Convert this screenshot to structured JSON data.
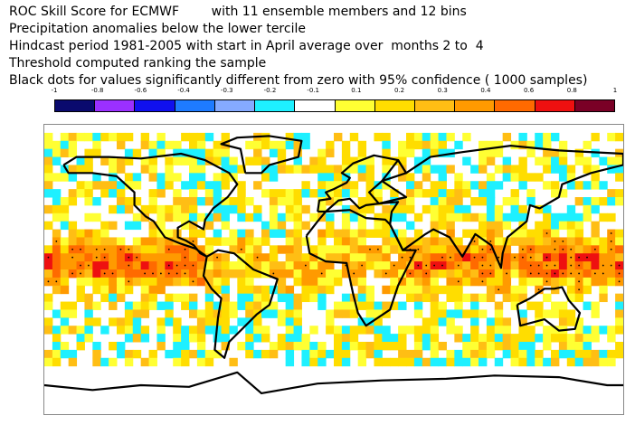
{
  "titles": [
    "ROC Skill Score for ECMWF        with 11 ensemble members and 12 bins",
    "Precipitation anomalies below the lower tercile",
    "Hindcast period 1981-2005 with start in April average over  months 2 to  4",
    "Threshold computed ranking the sample",
    "Black dots for values significantly different from zero with 95% confidence ( 1000 samples)"
  ],
  "legend": {
    "tick_labels": [
      "-1",
      "-0.8",
      "-0.6",
      "-0.4",
      "-0.3",
      "-0.2",
      "-0.1",
      "0.1",
      "0.2",
      "0.3",
      "0.4",
      "0.6",
      "0.8",
      "1"
    ],
    "colors": [
      "#0a0a6e",
      "#9b30ff",
      "#1010ee",
      "#1e7bff",
      "#85aaff",
      "#1ef0ff",
      "#ffffff",
      "#ffff33",
      "#ffdd00",
      "#ffbe14",
      "#ff9a00",
      "#ff6a00",
      "#ee1010",
      "#7a0026"
    ]
  },
  "map": {
    "projection": "equirectangular",
    "extent": {
      "lon": [
        -180,
        180
      ],
      "lat": [
        -90,
        90
      ]
    },
    "coastlines": true,
    "grid_resolution_deg": 5,
    "dominant_pattern": "Positive ROC skill (orange–red) in tropical Pacific and Indian Ocean; mixed yellow/cyan over extratropics; white over polar caps"
  }
}
